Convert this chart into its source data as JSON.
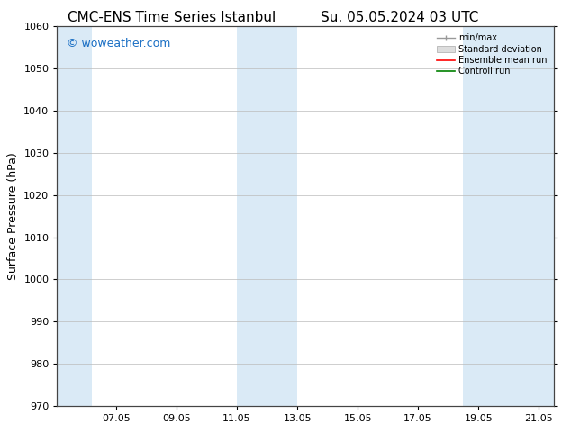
{
  "title_left": "CMC-ENS Time Series Istanbul",
  "title_right": "Su. 05.05.2024 03 UTC",
  "ylabel": "Surface Pressure (hPa)",
  "ylim": [
    970,
    1060
  ],
  "yticks": [
    970,
    980,
    990,
    1000,
    1010,
    1020,
    1030,
    1040,
    1050,
    1060
  ],
  "xlim_start": 5.04,
  "xlim_end": 21.5,
  "xtick_labels": [
    "07.05",
    "09.05",
    "11.05",
    "13.05",
    "15.05",
    "17.05",
    "19.05",
    "21.05"
  ],
  "xtick_positions": [
    7.0,
    9.0,
    11.0,
    13.0,
    15.0,
    17.0,
    19.0,
    21.0
  ],
  "shaded_bands": [
    {
      "x_start": 5.04,
      "x_end": 6.2
    },
    {
      "x_start": 11.0,
      "x_end": 13.0
    },
    {
      "x_start": 18.5,
      "x_end": 21.5
    }
  ],
  "band_color": "#daeaf6",
  "watermark_text": "© woweather.com",
  "watermark_color": "#1a6fc4",
  "legend_entries": [
    "min/max",
    "Standard deviation",
    "Ensemble mean run",
    "Controll run"
  ],
  "legend_colors_line": [
    "#999999",
    "#cccccc",
    "#ff0000",
    "#008000"
  ],
  "background_color": "#ffffff",
  "plot_bg_color": "#ffffff",
  "grid_color": "#bbbbbb",
  "title_fontsize": 11,
  "label_fontsize": 9,
  "tick_fontsize": 8,
  "watermark_fontsize": 9
}
